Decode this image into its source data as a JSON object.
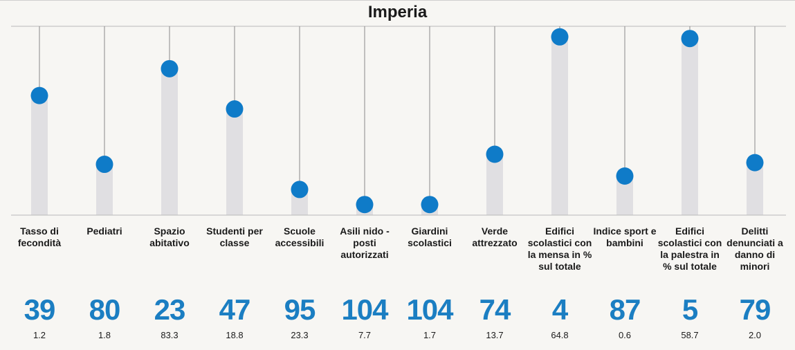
{
  "title": "Imperia",
  "colors": {
    "background": "#f7f6f3",
    "bar": "#e0dfe2",
    "dot": "#0f7bc8",
    "rank_text": "#1b7ec2",
    "stem": "#888888",
    "baseline": "#b8b8b8"
  },
  "chart_data": {
    "type": "lollipop",
    "title": "Imperia",
    "rank_max": 107,
    "categories": [
      "Tasso di fecondità",
      "Pediatri",
      "Spazio abitativo",
      "Studenti per classe",
      "Scuole accessibili",
      "Asili nido - posti autorizzati",
      "Giardini scolastici",
      "Verde attrezzato",
      "Edifici scolastici con la mensa in % sul totale",
      "Indice sport e bambini",
      "Edifici scolastici con la palestra in % sul totale",
      "Delitti denunciati a danno di minori"
    ],
    "ranks": [
      39,
      80,
      23,
      47,
      95,
      104,
      104,
      74,
      4,
      87,
      5,
      79
    ],
    "values": [
      "1.2",
      "1.8",
      "83.3",
      "18.8",
      "23.3",
      "7.7",
      "1.7",
      "13.7",
      "64.8",
      "0.6",
      "58.7",
      "2.0"
    ]
  }
}
